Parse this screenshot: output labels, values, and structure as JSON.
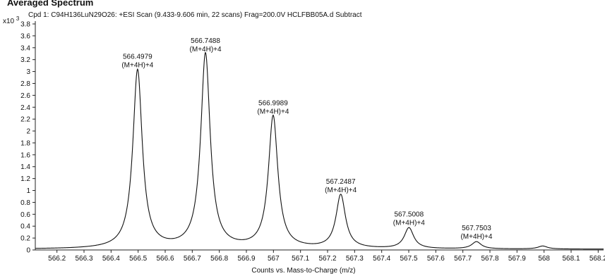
{
  "header": {
    "partial_title": "Averaged Spectrum",
    "scale_prefix": "x10",
    "scale_exponent": "3"
  },
  "chart_data": {
    "type": "line",
    "title": "Cpd 1: C94H136LuN29O26: +ESI Scan (9.433-9.606 min, 22 scans) Frag=200.0V HCLFBB05A.d  Subtract",
    "xlabel": "Counts vs. Mass-to-Charge (m/z)",
    "ylabel": "",
    "xlim": [
      566.12,
      568.22
    ],
    "ylim": [
      0,
      3.8
    ],
    "y_scale_note": "x10^3",
    "grid": false,
    "x_ticks": [
      "566.2",
      "566.3",
      "566.4",
      "566.5",
      "566.6",
      "566.7",
      "566.8",
      "566.9",
      "567",
      "567.1",
      "567.2",
      "567.3",
      "567.4",
      "567.5",
      "567.6",
      "567.7",
      "567.8",
      "567.9",
      "568",
      "568.1",
      "568.2"
    ],
    "y_ticks": [
      "0",
      "0.2",
      "0.4",
      "0.6",
      "0.8",
      "1",
      "1.2",
      "1.4",
      "1.6",
      "1.8",
      "2",
      "2.2",
      "2.4",
      "2.6",
      "2.8",
      "3",
      "3.2",
      "3.4",
      "3.6",
      "3.8"
    ],
    "peaks": [
      {
        "mz": 566.4979,
        "intensity": 3.0,
        "label_mz": "566.4979",
        "label_ion": "(M+4H)+4"
      },
      {
        "mz": 566.7488,
        "intensity": 3.27,
        "label_mz": "566.7488",
        "label_ion": "(M+4H)+4"
      },
      {
        "mz": 566.9989,
        "intensity": 2.22,
        "label_mz": "566.9989",
        "label_ion": "(M+4H)+4"
      },
      {
        "mz": 567.2487,
        "intensity": 0.9,
        "label_mz": "567.2487",
        "label_ion": "(M+4H)+4"
      },
      {
        "mz": 567.5008,
        "intensity": 0.35,
        "label_mz": "567.5008",
        "label_ion": "(M+4H)+4"
      },
      {
        "mz": 567.7503,
        "intensity": 0.12,
        "label_mz": "567.7503",
        "label_ion": "(M+4H)+4"
      },
      {
        "mz": 567.995,
        "intensity": 0.05,
        "label_mz": "",
        "label_ion": ""
      }
    ],
    "peak_width": 0.021,
    "baseline": 0.012
  }
}
